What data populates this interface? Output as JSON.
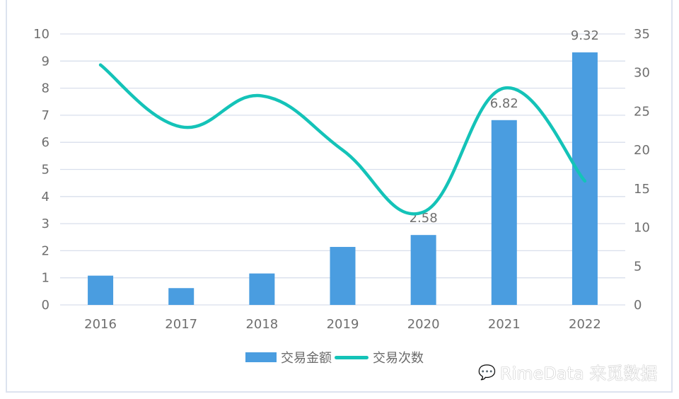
{
  "chart_data": {
    "type": "bar+line",
    "title": "",
    "categories": [
      "2016",
      "2017",
      "2018",
      "2019",
      "2020",
      "2021",
      "2022"
    ],
    "series": [
      {
        "name": "交易金额",
        "type": "bar",
        "axis": "left",
        "color": "#4a9de0",
        "values": [
          1.08,
          0.62,
          1.16,
          2.14,
          2.58,
          6.82,
          9.32
        ],
        "data_labels": {
          "4": "2.58",
          "5": "6.82",
          "6": "9.32"
        }
      },
      {
        "name": "交易次数",
        "type": "line",
        "axis": "right",
        "smooth": true,
        "color": "#14c3b8",
        "values": [
          31,
          23,
          27,
          20,
          12,
          28,
          16
        ]
      }
    ],
    "y_left": {
      "min": 0,
      "max": 10,
      "ticks": [
        "0",
        "1",
        "2",
        "3",
        "4",
        "5",
        "6",
        "7",
        "8",
        "9",
        "10"
      ]
    },
    "y_right": {
      "min": 0,
      "max": 35,
      "ticks": [
        "0",
        "5",
        "10",
        "15",
        "20",
        "25",
        "30",
        "35"
      ]
    },
    "xlabel": "",
    "ylabel": "",
    "grid": true,
    "legend_position": "bottom"
  },
  "legend": {
    "bar_label": "交易金额",
    "line_label": "交易次数"
  },
  "watermark": {
    "icon": "wechat-icon",
    "text": "RimeData 来觅数据"
  }
}
